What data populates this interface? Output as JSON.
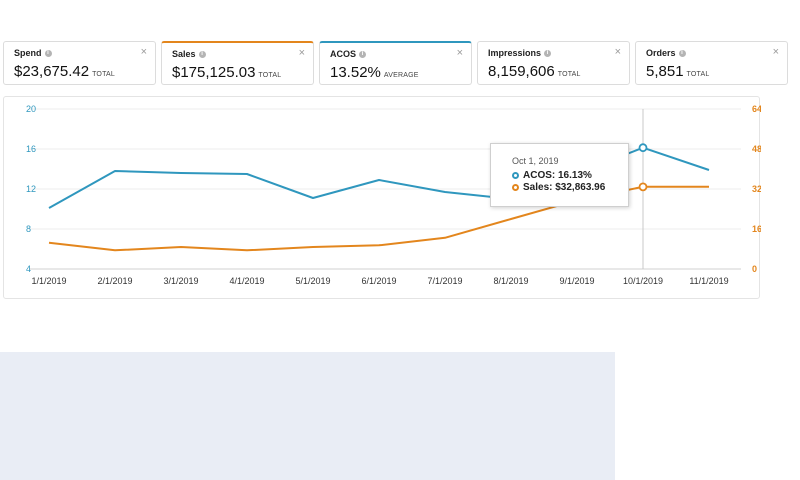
{
  "metrics": [
    {
      "label": "Spend",
      "value": "$23,675.42",
      "suffix": "TOTAL",
      "selected": ""
    },
    {
      "label": "Sales",
      "value": "$175,125.03",
      "suffix": "TOTAL",
      "selected": "orange"
    },
    {
      "label": "ACOS",
      "value": "13.52%",
      "suffix": "AVERAGE",
      "selected": "blue"
    },
    {
      "label": "Impressions",
      "value": "8,159,606",
      "suffix": "TOTAL",
      "selected": ""
    },
    {
      "label": "Orders",
      "value": "5,851",
      "suffix": "TOTAL",
      "selected": ""
    }
  ],
  "close_glyph": "×",
  "info_glyph": "i",
  "colors": {
    "acos": "#2f97be",
    "sales": "#e3861d",
    "panel_bg": "#e9edf5"
  },
  "tooltip": {
    "title": "Oct 1, 2019",
    "rows": [
      {
        "text": "ACOS: 16.13%"
      },
      {
        "text": "Sales: $32,863.96"
      }
    ]
  },
  "chart_data": {
    "type": "line",
    "categories": [
      "1/1/2019",
      "2/1/2019",
      "3/1/2019",
      "4/1/2019",
      "5/1/2019",
      "6/1/2019",
      "7/1/2019",
      "8/1/2019",
      "9/1/2019",
      "10/1/2019",
      "11/1/2019"
    ],
    "series": [
      {
        "name": "ACOS",
        "axis": "left",
        "color": "#2f97be",
        "values": [
          10.1,
          13.8,
          13.6,
          13.5,
          11.1,
          12.9,
          11.7,
          11.0,
          null,
          16.13,
          13.9
        ]
      },
      {
        "name": "Sales",
        "axis": "right",
        "color": "#e3861d",
        "values": [
          10500,
          7500,
          8800,
          7500,
          8800,
          9500,
          12500,
          20000,
          27500,
          32863.96,
          32900
        ]
      }
    ],
    "y_left": {
      "ylim": [
        4,
        20
      ],
      "ticks": [
        "4",
        "8",
        "12",
        "16",
        "20"
      ]
    },
    "y_right": {
      "ylim": [
        0,
        64000
      ],
      "ticks": [
        "0",
        "16k",
        "32k",
        "48k",
        "64k"
      ]
    },
    "highlight_category": "10/1/2019",
    "grid": true,
    "legend": "none"
  }
}
